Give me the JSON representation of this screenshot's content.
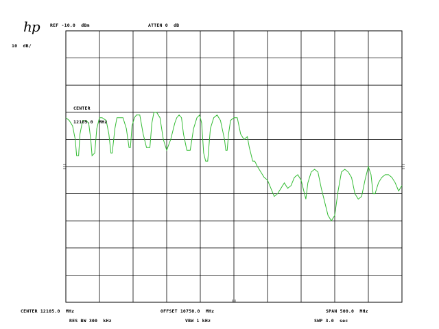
{
  "header": {
    "logo": "hp",
    "ref_label": "REF",
    "ref_value": "-10.0",
    "ref_unit": "dBm",
    "atten_label": "ATTEN",
    "atten_value": "0",
    "atten_unit": "dB",
    "scale": "10",
    "scale_unit": "dB/"
  },
  "annotation": {
    "center_label": "CENTER",
    "center_value": "12105.0",
    "center_unit": "MHz"
  },
  "footer": {
    "center_label": "CENTER",
    "center_value": "12105.0",
    "center_unit": "MHz",
    "offset_label": "OFFSET",
    "offset_value": "10750.0",
    "offset_unit": "MHz",
    "span_label": "SPAN",
    "span_value": "500.0",
    "span_unit": "MHz",
    "rbw_label": "RES BW",
    "rbw_value": "300",
    "rbw_unit": "kHz",
    "vbw_label": "VBW",
    "vbw_value": "1",
    "vbw_unit": "kHz",
    "swp_label": "SWP",
    "swp_value": "3.0",
    "swp_unit": "sec"
  },
  "colors": {
    "trace": "#33bb33",
    "grid": "#000000"
  },
  "chart_data": {
    "type": "line",
    "xlim": [
      0,
      10
    ],
    "ylim": [
      -110,
      -10
    ],
    "grid": true,
    "series": [
      {
        "x": [
          0,
          0.1,
          0.2,
          0.28,
          0.32,
          0.38,
          0.42,
          0.5,
          0.6,
          0.68,
          0.74,
          0.78,
          0.86,
          0.92,
          1.0,
          1.08,
          1.2,
          1.28,
          1.34,
          1.38,
          1.46,
          1.52,
          1.6,
          1.7,
          1.8,
          1.88,
          1.92,
          1.97,
          2.04,
          2.1,
          2.2,
          2.3,
          2.4,
          2.5,
          2.56,
          2.62,
          2.7,
          2.8,
          2.9,
          3.0,
          3.12,
          3.24,
          3.3,
          3.37,
          3.44,
          3.5,
          3.6,
          3.7,
          3.8,
          3.9,
          3.98,
          4.04,
          4.1,
          4.16,
          4.22,
          4.3,
          4.4,
          4.5,
          4.6,
          4.72,
          4.76,
          4.8,
          4.84,
          4.9,
          5.0,
          5.1,
          5.2,
          5.3,
          5.4,
          5.46,
          5.5,
          5.56,
          5.62,
          5.7,
          5.8,
          5.9,
          6.0,
          6.1,
          6.2,
          6.3,
          6.4,
          6.5,
          6.6,
          6.7,
          6.8,
          6.9,
          7.0,
          7.08,
          7.14,
          7.2,
          7.3,
          7.4,
          7.5,
          7.6,
          7.7,
          7.8,
          7.9,
          8.0,
          8.1,
          8.2,
          8.3,
          8.4,
          8.5,
          8.6,
          8.7,
          8.8,
          8.9,
          9.0,
          9.08,
          9.14,
          9.2,
          9.3,
          9.4,
          9.5,
          9.6,
          9.7,
          9.8,
          9.9,
          10.0
        ],
        "y": [
          -42,
          -43,
          -45,
          -50,
          -56,
          -56,
          -48,
          -43,
          -43,
          -44,
          -50,
          -56,
          -55,
          -46,
          -42,
          -42,
          -43,
          -48,
          -55,
          -55,
          -46,
          -42,
          -42,
          -42,
          -46,
          -53,
          -53,
          -45,
          -42,
          -41,
          -41,
          -48,
          -53,
          -53,
          -44,
          -40,
          -40,
          -42,
          -50,
          -54,
          -50,
          -44,
          -42,
          -41,
          -42,
          -48,
          -54,
          -54,
          -46,
          -42,
          -41,
          -44,
          -55,
          -58,
          -58,
          -46,
          -42,
          -41,
          -43,
          -50,
          -54,
          -54,
          -48,
          -43,
          -42,
          -42,
          -48,
          -50,
          -49,
          -53,
          -55,
          -58,
          -58,
          -60,
          -62,
          -64,
          -65,
          -68,
          -71,
          -70,
          -68,
          -66,
          -68,
          -67,
          -64,
          -63,
          -65,
          -69,
          -72,
          -66,
          -62,
          -61,
          -62,
          -68,
          -73,
          -78,
          -80,
          -78,
          -69,
          -62,
          -61,
          -62,
          -64,
          -70,
          -72,
          -71,
          -65,
          -60,
          -63,
          -70,
          -70,
          -66,
          -64,
          -63,
          -63,
          -64,
          -66,
          -69,
          -67
        ]
      }
    ]
  }
}
